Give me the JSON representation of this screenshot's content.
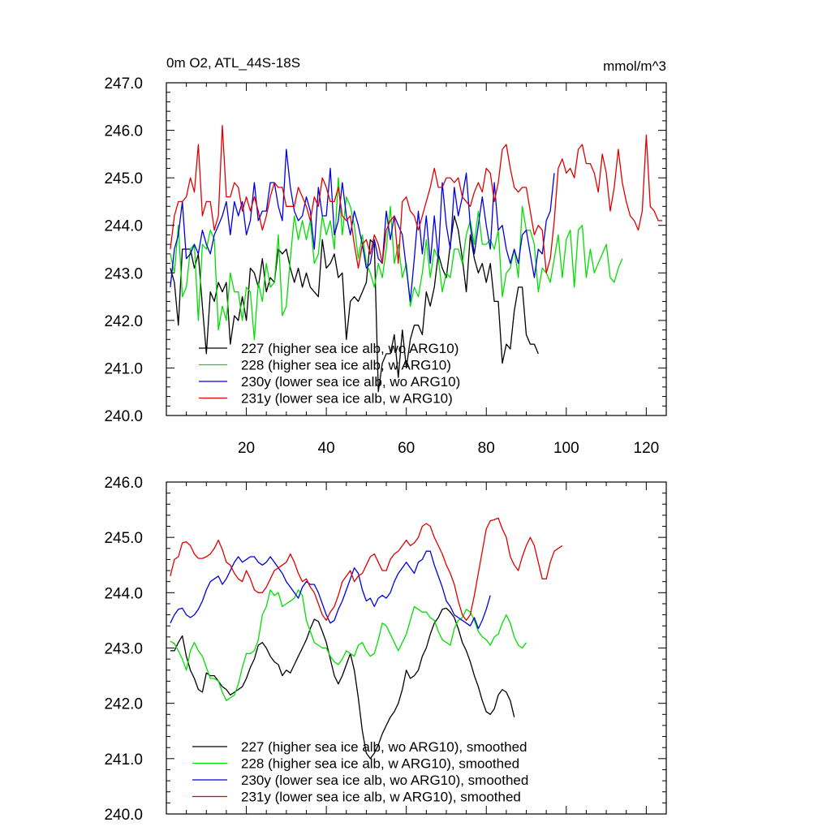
{
  "chart_data": [
    {
      "type": "line",
      "title": "0m O2, ATL_44S-18S",
      "units_label": "mmol/m^3",
      "ylim": [
        240.0,
        247.0
      ],
      "yticks": [
        "240.0",
        "241.0",
        "242.0",
        "243.0",
        "244.0",
        "245.0",
        "246.0",
        "247.0"
      ],
      "xlim": [
        0,
        125
      ],
      "xticks": [
        "20",
        "40",
        "60",
        "80",
        "100",
        "120"
      ],
      "legend_position": "lower-left",
      "series": [
        {
          "name": "227 (higher sea ice alb, wo ARG10)",
          "color": "#000000",
          "x_start": 1,
          "values": [
            243.1,
            242.8,
            241.9,
            243.5,
            243.5,
            243.5,
            243.1,
            243.4,
            242.3,
            241.3,
            242.6,
            242.4,
            242.8,
            242.6,
            242.8,
            241.5,
            242.1,
            242.0,
            242.5,
            242.0,
            243.1,
            243.0,
            242.7,
            243.3,
            242.6,
            242.9,
            242.8,
            243.5,
            243.4,
            243.5,
            243.1,
            242.8,
            243.1,
            242.7,
            243.0,
            242.7,
            242.6,
            242.5,
            243.7,
            243.1,
            243.2,
            243.4,
            242.9,
            243.0,
            241.6,
            242.4,
            242.5,
            242.4,
            242.6,
            242.8,
            243.7,
            243.6,
            240.5,
            241.1,
            241.3,
            241.3,
            241.7,
            240.8,
            241.8,
            241.0,
            241.6,
            241.9,
            241.9,
            241.7,
            242.6,
            242.3,
            242.7,
            243.4,
            243.1,
            242.9,
            243.6,
            244.2,
            243.9,
            243.3,
            242.6,
            243.8,
            243.3,
            243.0,
            243.2,
            242.8,
            243.2,
            242.4,
            242.4,
            241.1,
            241.5,
            241.4,
            242.2,
            242.7,
            242.7,
            241.7,
            241.5,
            241.5,
            241.3
          ]
        },
        {
          "name": "228 (higher sea ice alb, w ARG10)",
          "color": "#00e000",
          "x_start": 1,
          "values": [
            243.4,
            243.0,
            244.0,
            242.5,
            242.7,
            243.5,
            243.6,
            242.0,
            243.6,
            243.5,
            243.9,
            243.7,
            241.8,
            242.3,
            242.0,
            243.0,
            242.6,
            242.6,
            242.0,
            242.7,
            242.6,
            241.6,
            242.8,
            242.4,
            243.2,
            242.7,
            242.8,
            243.8,
            242.1,
            242.3,
            243.3,
            244.2,
            243.7,
            244.1,
            243.7,
            244.1,
            243.2,
            243.4,
            244.2,
            243.8,
            244.1,
            243.5,
            245.0,
            243.8,
            244.6,
            244.4,
            244.0,
            243.3,
            243.8,
            243.2,
            243.0,
            242.7,
            243.2,
            242.9,
            243.5,
            244.4,
            243.2,
            243.6,
            242.9,
            243.2,
            242.3,
            242.7,
            242.5,
            243.0,
            243.7,
            242.9,
            243.5,
            243.3,
            242.6,
            243.0,
            242.9,
            243.5,
            243.5,
            243.2,
            243.8,
            244.1,
            243.6,
            244.3,
            243.6,
            243.6,
            243.7,
            243.5,
            243.9,
            242.5,
            243.0,
            243.1,
            243.5,
            242.9,
            244.4,
            243.9,
            243.9,
            243.6,
            242.6,
            243.1,
            243.0,
            242.8,
            243.3,
            243.8,
            242.9,
            243.7,
            243.9,
            242.7,
            243.9,
            244.0,
            242.9,
            243.5,
            243.0,
            243.2,
            243.4,
            243.6,
            242.9,
            242.8,
            243.1,
            243.3
          ]
        },
        {
          "name": "230y (lower sea ice alb, wo ARG10)",
          "color": "#0000e0",
          "x_start": 1,
          "values": [
            242.7,
            243.5,
            243.8,
            244.5,
            243.3,
            243.4,
            243.6,
            243.4,
            243.9,
            243.6,
            243.4,
            243.8,
            244.0,
            244.2,
            244.5,
            243.8,
            244.5,
            244.2,
            244.5,
            243.8,
            244.1,
            244.9,
            244.1,
            244.3,
            244.3,
            244.9,
            244.9,
            244.4,
            244.1,
            245.6,
            244.8,
            244.3,
            244.1,
            244.2,
            244.6,
            244.3,
            243.5,
            244.8,
            244.2,
            244.2,
            245.2,
            243.8,
            244.1,
            244.9,
            244.2,
            243.8,
            244.3,
            244.0,
            243.6,
            243.1,
            243.2,
            243.7,
            243.3,
            243.2,
            244.3,
            243.7,
            244.2,
            244.0,
            243.8,
            243.1,
            242.4,
            243.3,
            244.3,
            243.4,
            244.2,
            243.2,
            244.2,
            243.3,
            244.9,
            244.0,
            243.5,
            244.8,
            244.2,
            244.6,
            245.1,
            244.0,
            243.4,
            244.0,
            244.6,
            244.0,
            243.5,
            244.9,
            243.9,
            244.0,
            243.5,
            243.2,
            243.5,
            243.2,
            243.8,
            243.9,
            243.4,
            242.9,
            243.5,
            243.4,
            244.1,
            244.3,
            245.1
          ]
        },
        {
          "name": "231y (lower sea ice alb, w ARG10)",
          "color": "#e00000",
          "x_start": 1,
          "values": [
            243.5,
            244.2,
            244.5,
            244.5,
            244.6,
            245.0,
            244.7,
            245.7,
            244.2,
            244.5,
            244.5,
            243.9,
            244.2,
            246.1,
            244.6,
            244.6,
            244.9,
            244.8,
            244.3,
            244.6,
            244.3,
            244.6,
            244.3,
            243.9,
            244.2,
            244.6,
            244.9,
            244.8,
            244.8,
            244.4,
            244.4,
            244.4,
            244.8,
            244.6,
            244.4,
            244.1,
            244.6,
            244.4,
            245.0,
            244.8,
            244.5,
            244.5,
            244.8,
            244.2,
            244.1,
            244.2,
            243.6,
            243.1,
            243.6,
            243.7,
            243.4,
            243.8,
            243.6,
            243.2,
            243.9,
            244.1,
            244.2,
            243.2,
            244.5,
            244.6,
            244.3,
            244.2,
            243.9,
            244.2,
            244.5,
            244.8,
            245.2,
            244.8,
            244.8,
            245.0,
            245.0,
            244.9,
            245.0,
            244.6,
            244.5,
            244.4,
            244.7,
            244.9,
            244.7,
            245.2,
            245.1,
            244.5,
            244.9,
            245.6,
            245.7,
            245.2,
            244.8,
            244.7,
            244.8,
            244.8,
            244.3,
            243.8,
            244.0,
            243.9,
            243.0,
            243.3,
            244.1,
            245.2,
            245.4,
            245.1,
            245.2,
            245.0,
            245.6,
            245.7,
            245.3,
            245.3,
            245.1,
            244.7,
            245.5,
            245.1,
            244.3,
            244.8,
            245.6,
            244.9,
            244.5,
            244.2,
            244.1,
            243.9,
            244.3,
            245.9,
            244.4,
            244.3,
            244.1,
            244.1
          ]
        }
      ]
    },
    {
      "type": "line",
      "ylim": [
        240.0,
        246.0
      ],
      "yticks": [
        "240.0",
        "241.0",
        "242.0",
        "243.0",
        "244.0",
        "245.0",
        "246.0"
      ],
      "xlim": [
        0,
        125
      ],
      "legend_position": "lower-left",
      "series": [
        {
          "name": "227 (higher sea ice alb, wo ARG10), smoothed",
          "color": "#000000",
          "x_start": 1,
          "values": [
            242.95,
            242.95,
            243.1,
            243.22,
            242.85,
            242.6,
            242.45,
            242.25,
            242.2,
            242.55,
            242.5,
            242.5,
            242.4,
            242.3,
            242.25,
            242.15,
            242.2,
            242.25,
            242.3,
            242.45,
            242.65,
            242.8,
            243.05,
            243.1,
            243.0,
            242.85,
            242.75,
            242.7,
            242.5,
            242.6,
            242.55,
            242.7,
            242.85,
            243.0,
            243.15,
            243.35,
            243.52,
            243.48,
            243.3,
            243.1,
            242.8,
            242.5,
            242.35,
            242.5,
            242.7,
            242.9,
            242.6,
            242.1,
            241.5,
            241.1,
            241.0,
            241.1,
            241.25,
            241.45,
            241.6,
            241.75,
            241.85,
            242.0,
            242.25,
            242.6,
            242.45,
            242.5,
            242.6,
            242.85,
            243.0,
            243.25,
            243.45,
            243.55,
            243.7,
            243.72,
            243.65,
            243.55,
            243.35,
            243.1,
            242.95,
            242.75,
            242.5,
            242.3,
            242.05,
            241.85,
            241.8,
            241.9,
            242.15,
            242.25,
            242.2,
            242.05,
            241.75
          ]
        },
        {
          "name": "228 (higher sea ice alb, w ARG10), smoothed",
          "color": "#00e000",
          "x_start": 1,
          "values": [
            243.12,
            243.08,
            242.95,
            242.8,
            242.6,
            242.95,
            243.1,
            242.95,
            242.85,
            242.65,
            242.45,
            242.45,
            242.4,
            242.2,
            242.05,
            242.1,
            242.15,
            242.35,
            242.65,
            242.9,
            242.9,
            242.95,
            243.15,
            243.6,
            243.75,
            244.05,
            243.95,
            244.0,
            243.75,
            243.8,
            243.85,
            243.9,
            244.05,
            243.95,
            243.5,
            243.3,
            243.1,
            243.05,
            243.0,
            243.0,
            242.85,
            242.75,
            242.7,
            242.8,
            242.95,
            242.9,
            242.85,
            243.05,
            243.1,
            242.95,
            242.85,
            242.9,
            243.15,
            243.45,
            243.4,
            243.25,
            243.1,
            242.95,
            243.1,
            243.25,
            243.5,
            243.75,
            243.7,
            243.65,
            243.65,
            243.55,
            243.5,
            243.3,
            243.15,
            243.1,
            243.05,
            243.35,
            243.5,
            243.55,
            243.7,
            243.65,
            243.5,
            243.3,
            243.2,
            243.15,
            243.05,
            243.2,
            243.25,
            243.45,
            243.6,
            243.45,
            243.2,
            243.05,
            243.0,
            243.1
          ]
        },
        {
          "name": "230y (lower sea ice alb, wo ARG10), smoothed",
          "color": "#0000e0",
          "x_start": 1,
          "values": [
            243.45,
            243.6,
            243.7,
            243.72,
            243.6,
            243.55,
            243.6,
            243.7,
            243.85,
            244.05,
            244.2,
            244.25,
            244.3,
            244.15,
            244.25,
            244.4,
            244.55,
            244.65,
            244.55,
            244.6,
            244.65,
            244.65,
            244.55,
            244.5,
            244.55,
            244.65,
            244.55,
            244.45,
            244.35,
            244.2,
            244.1,
            244.0,
            243.9,
            244.1,
            244.2,
            244.15,
            244.15,
            244.0,
            243.8,
            243.6,
            243.45,
            243.5,
            243.7,
            243.85,
            244.05,
            244.25,
            244.45,
            244.35,
            244.05,
            243.85,
            243.9,
            243.75,
            243.9,
            243.95,
            243.9,
            244.0,
            244.2,
            244.35,
            244.45,
            244.55,
            244.45,
            244.35,
            244.55,
            244.6,
            244.75,
            244.75,
            244.5,
            244.3,
            244.1,
            243.85,
            243.75,
            243.6,
            243.55,
            243.5,
            243.45,
            243.4,
            243.55,
            243.35,
            243.5,
            243.7,
            243.95
          ]
        },
        {
          "name": "231y (lower sea ice alb, w ARG10), smoothed",
          "color": "#e00000",
          "x_start": 1,
          "values": [
            244.3,
            244.6,
            244.65,
            244.9,
            244.92,
            244.85,
            244.7,
            244.62,
            244.62,
            244.65,
            244.7,
            244.8,
            244.95,
            244.78,
            244.55,
            244.5,
            244.35,
            244.25,
            244.2,
            244.4,
            244.25,
            244.05,
            244.0,
            244.0,
            244.1,
            244.25,
            244.4,
            244.45,
            244.5,
            244.55,
            244.7,
            244.55,
            244.35,
            244.2,
            244.25,
            244.1,
            244.0,
            243.8,
            243.6,
            243.5,
            243.65,
            243.75,
            243.95,
            244.2,
            244.3,
            244.4,
            244.2,
            244.3,
            244.35,
            244.5,
            244.65,
            244.7,
            244.55,
            244.4,
            244.4,
            244.6,
            244.7,
            244.75,
            244.85,
            244.95,
            244.85,
            244.9,
            245.0,
            245.2,
            245.25,
            245.2,
            245.0,
            244.85,
            244.7,
            244.5,
            244.35,
            244.15,
            243.85,
            243.6,
            243.5,
            243.6,
            243.95,
            244.35,
            244.75,
            245.15,
            245.3,
            245.32,
            245.35,
            245.15,
            245.0,
            244.65,
            244.5,
            244.4,
            244.65,
            244.85,
            245.0,
            244.85,
            244.55,
            244.25,
            244.25,
            244.55,
            244.75,
            244.8,
            244.85
          ]
        }
      ]
    }
  ]
}
